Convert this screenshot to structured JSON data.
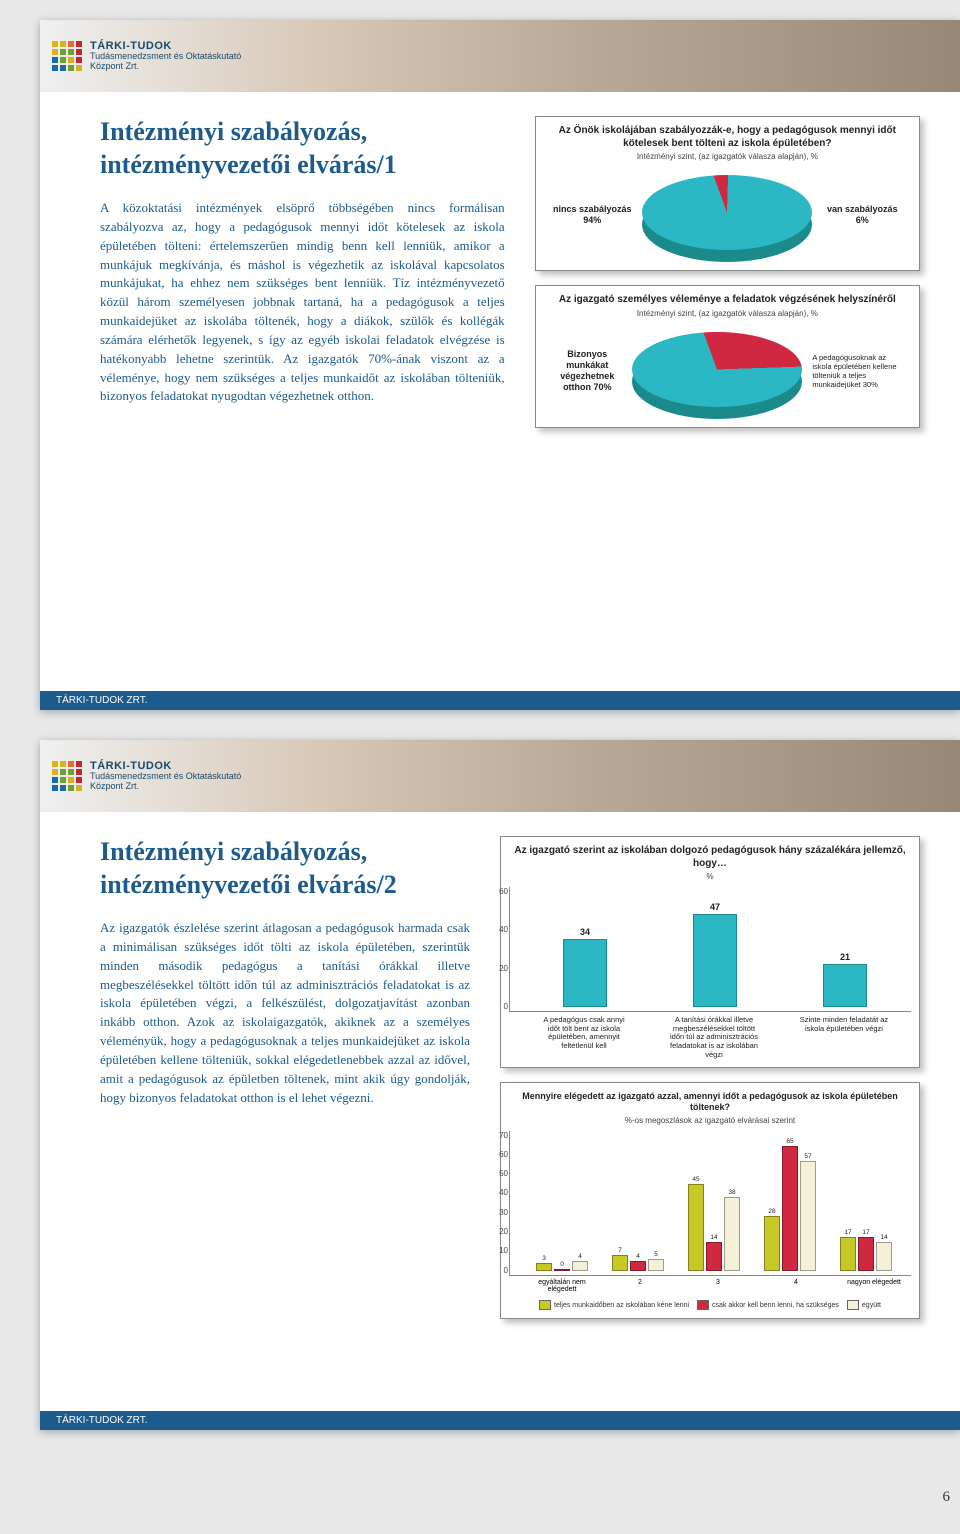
{
  "page_number": "6",
  "logo": {
    "brand": "TÁRKI-TUDOK",
    "sub1": "Tudásmenedzsment és Oktatáskutató",
    "sub2": "Központ Zrt.",
    "colors": [
      "#d8b020",
      "#d8b020",
      "#e07030",
      "#c02830",
      "#d8b020",
      "#70a030",
      "#70a030",
      "#c02830",
      "#1a6aa8",
      "#70a030",
      "#d8b020",
      "#c02830",
      "#1a6aa8",
      "#1a6aa8",
      "#70a030",
      "#d8b020"
    ]
  },
  "footer": "TÁRKI-TUDOK ZRT.",
  "colors": {
    "title": "#1c5b8c",
    "body": "#1c5b8c",
    "footer_bg": "#1c5b8c",
    "bar_fill": "#2bb8c4",
    "bar_border": "#1a8a8a",
    "pie_main": "#2bb8c4",
    "pie_slice": "#d02840",
    "pie_edge": "#1a8a8a"
  },
  "slide1": {
    "title": "Intézményi szabályozás, intézményvezetői elvárás/1",
    "body": "A közoktatási intézmények elsöprő többségében nincs formálisan szabályozva az, hogy a pedagógusok mennyi időt kötelesek az iskola épületében tölteni: értelemszerűen mindig benn kell lenniük, amikor a munkájuk megkívánja, és máshol is végezhetik az iskolával kapcsolatos munkájukat, ha ehhez nem szükséges bent lenniük. Tíz intézményvezető közül három személyesen jobbnak tartaná, ha a pedagógusok a teljes munkaidejüket az iskolába töltenék, hogy a diákok, szülők és kollégák számára elérhetők legyenek, s így az egyéb iskolai feladatok elvégzése is hatékonyabb lehetne szerintük. Az igazgatók 70%-ának viszont az a véleménye, hogy nem szükséges a teljes munkaidőt az iskolában tölteniük, bizonyos feladatokat nyugodtan végezhetnek otthon.",
    "pie1": {
      "title": "Az Önök iskolájában szabályozzák-e, hogy a pedagógusok mennyi időt kötelesek bent tölteni az iskola épületében?",
      "subtitle": "Intézményi szint, (az igazgatók válasza alapján), %",
      "left_label": "nincs szabályozás 94%",
      "right_label": "van szabályozás 6%",
      "main_pct": 94,
      "slice_pct": 6
    },
    "pie2": {
      "title": "Az igazgató személyes véleménye a feladatok végzésének helyszínéről",
      "subtitle": "Intézményi szint, (az igazgatók válasza alapján), %",
      "left_label": "Bizonyos munkákat végezhetnek otthon 70%",
      "right_label": "A pedagógusoknak az iskola épületében kellene tölteniük a teljes munkaidejüket 30%",
      "main_pct": 70,
      "slice_pct": 30
    }
  },
  "slide2": {
    "title": "Intézményi szabályozás, intézményvezetői elvárás/2",
    "body": "Az igazgatók észlelése szerint átlagosan a pedagógusok harmada csak a minimálisan szükséges időt tölti az iskola épületében, szerintük minden második pedagógus a tanítási órákkal illetve megbeszélésekkel töltött időn túl az adminisztrációs feladatokat is az iskola épületében végzi, a felkészülést, dolgozatjavítást azonban inkább otthon. Azok az iskolaigazgatók, akiknek az a személyes véleményük, hogy a pedagógusoknak a teljes munkaidejüket az iskola épületében kellene tölteniük, sokkal elégedetlenebbek azzal az idővel, amit a pedagógusok az épületben töltenek, mint akik úgy gondolják, hogy bizonyos feladatokat otthon is el lehet végezni.",
    "bar": {
      "title": "Az igazgató szerint az iskolában dolgozó pedagógusok hány százalékára jellemző, hogy…",
      "subtitle": "%",
      "ylim": [
        0,
        60
      ],
      "ytick_step": 20,
      "categories": [
        "A pedagógus csak annyi időt tölt bent az iskola épületében, amennyit feltétlenül kell",
        "A tanítási órákkal illetve megbeszélésekkel töltött időn túl az adminisztrációs feladatokat is az iskolában végzi",
        "Szinte minden feladatát az iskola épületében végzi"
      ],
      "values": [
        34,
        47,
        21
      ]
    },
    "grouped": {
      "title": "Mennyire elégedett az igazgató azzal, amennyi időt a pedagógusok az iskola épületében töltenek?",
      "subtitle": "%-os megoszlások az igazgató elvárásai szerint",
      "ylim": [
        0,
        70
      ],
      "ytick_step": 10,
      "categories": [
        "egyáltalán nem elégedett",
        "2",
        "3",
        "4",
        "nagyon elégedett"
      ],
      "series": [
        {
          "label": "teljes munkaidőben az iskolában kéne lenni",
          "color": "#c8c828",
          "values": [
            3,
            7,
            45,
            28,
            17
          ]
        },
        {
          "label": "csak akkor kell benn lenni, ha szükséges",
          "color": "#d02840",
          "values": [
            0,
            4,
            14,
            65,
            17
          ]
        },
        {
          "label": "együtt",
          "color": "#f5f0d8",
          "values": [
            4,
            5,
            38,
            57,
            14
          ]
        }
      ]
    }
  }
}
